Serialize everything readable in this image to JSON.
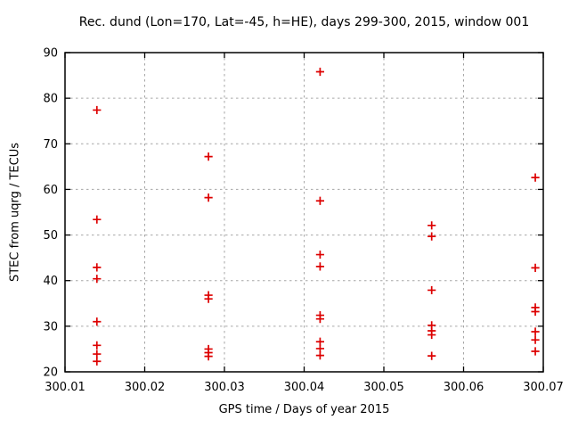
{
  "chart_data": {
    "type": "scatter",
    "title": "Rec. dund (Lon=170, Lat=-45, h=HE), days 299-300, 2015, window 001",
    "xlabel": "GPS time / Days of year 2015",
    "ylabel": "STEC from uqrg / TECUs",
    "xlim": [
      300.01,
      300.07
    ],
    "ylim": [
      20,
      90
    ],
    "xticks": [
      300.01,
      300.02,
      300.03,
      300.04,
      300.05,
      300.06,
      300.07
    ],
    "xtick_labels": [
      "300.01",
      "300.02",
      "300.03",
      "300.04",
      "300.05",
      "300.06",
      "300.07"
    ],
    "yticks": [
      20,
      30,
      40,
      50,
      60,
      70,
      80,
      90
    ],
    "ytick_labels": [
      "20",
      "30",
      "40",
      "50",
      "60",
      "70",
      "80",
      "90"
    ],
    "grid": "dotted",
    "legend": "none",
    "marker": "plus",
    "marker_color": "#dd0000",
    "grid_color": "#a6a6a6",
    "border_color": "#000000",
    "series": [
      {
        "name": "STEC from uqrg",
        "points": [
          [
            300.014,
            77.4
          ],
          [
            300.014,
            53.4
          ],
          [
            300.014,
            42.9
          ],
          [
            300.014,
            40.4
          ],
          [
            300.014,
            31.0
          ],
          [
            300.014,
            25.8
          ],
          [
            300.014,
            23.9
          ],
          [
            300.014,
            22.3
          ],
          [
            300.028,
            67.2
          ],
          [
            300.028,
            58.2
          ],
          [
            300.028,
            36.8
          ],
          [
            300.028,
            36.0
          ],
          [
            300.028,
            25.0
          ],
          [
            300.028,
            24.2
          ],
          [
            300.028,
            23.4
          ],
          [
            300.042,
            85.8
          ],
          [
            300.042,
            57.5
          ],
          [
            300.042,
            45.7
          ],
          [
            300.042,
            43.1
          ],
          [
            300.042,
            32.4
          ],
          [
            300.042,
            31.6
          ],
          [
            300.042,
            26.6
          ],
          [
            300.042,
            25.1
          ],
          [
            300.042,
            23.6
          ],
          [
            300.056,
            52.1
          ],
          [
            300.056,
            49.7
          ],
          [
            300.056,
            37.9
          ],
          [
            300.056,
            30.2
          ],
          [
            300.056,
            29.0
          ],
          [
            300.056,
            28.1
          ],
          [
            300.056,
            23.5
          ],
          [
            300.069,
            62.6
          ],
          [
            300.069,
            42.8
          ],
          [
            300.069,
            34.1
          ],
          [
            300.069,
            33.2
          ],
          [
            300.069,
            28.8
          ],
          [
            300.069,
            27.0
          ],
          [
            300.069,
            24.5
          ]
        ]
      }
    ]
  }
}
